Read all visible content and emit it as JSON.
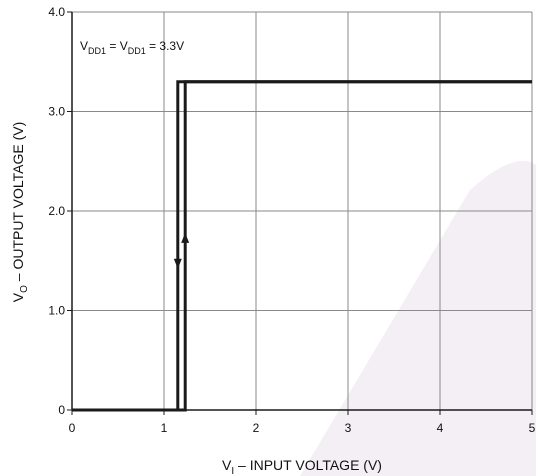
{
  "chart_data": {
    "type": "line",
    "xlabel": {
      "main": "V",
      "sub": "I",
      "rest": " – INPUT VOLTAGE (V)"
    },
    "ylabel": {
      "main": "V",
      "sub": "O",
      "rest": " – OUTPUT VOLTAGE (V)"
    },
    "annotation": {
      "p1": "V",
      "s1": "DD1",
      "p2": " = V",
      "s2": "DD1",
      "p3": " = 3.3V"
    },
    "xlim": [
      0,
      5
    ],
    "ylim": [
      0,
      4
    ],
    "x_ticks": [
      0,
      1,
      2,
      3,
      4,
      5
    ],
    "x_tick_labels": [
      "0",
      "1",
      "2",
      "3",
      "4",
      "5"
    ],
    "y_ticks": [
      0,
      1,
      2,
      3,
      4
    ],
    "y_tick_labels": [
      "0",
      "1.0",
      "2.0",
      "3.0",
      "4.0"
    ],
    "grid": true,
    "series": [
      {
        "direction": "falling",
        "x": [
          5.0,
          1.15,
          1.15,
          0.0
        ],
        "y": [
          3.3,
          3.3,
          0.0,
          0.0
        ],
        "arrow": {
          "x": 1.15,
          "y": 1.5,
          "dir": "down"
        }
      },
      {
        "direction": "rising",
        "x": [
          0.0,
          1.23,
          1.23,
          5.0
        ],
        "y": [
          0.0,
          0.0,
          3.3,
          3.3
        ],
        "arrow": {
          "x": 1.23,
          "y": 1.7,
          "dir": "up"
        }
      }
    ],
    "colors": {
      "line": "#1a1a1a",
      "grid": "#8a8a8a",
      "axis": "#1a1a1a",
      "watermark": "#f3eff4"
    }
  }
}
